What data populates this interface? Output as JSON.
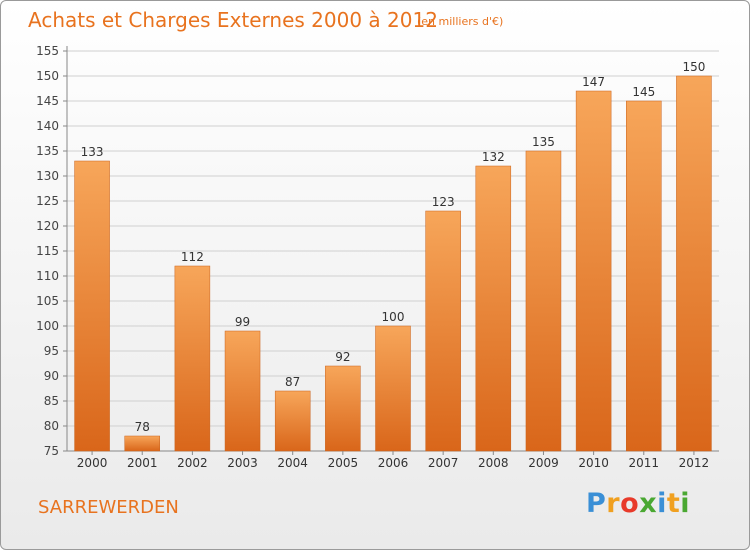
{
  "chart_data": {
    "type": "bar",
    "title": "Achats et Charges Externes 2000 à 2012",
    "subtitle": "(en milliers d'€)",
    "categories": [
      "2000",
      "2001",
      "2002",
      "2003",
      "2004",
      "2005",
      "2006",
      "2007",
      "2008",
      "2009",
      "2010",
      "2011",
      "2012"
    ],
    "values": [
      133,
      78,
      112,
      99,
      87,
      92,
      100,
      123,
      132,
      135,
      147,
      145,
      150
    ],
    "xlabel": "",
    "ylabel": "",
    "ylim": [
      75,
      155
    ],
    "yticks": [
      75,
      80,
      85,
      90,
      95,
      100,
      105,
      110,
      115,
      120,
      125,
      130,
      135,
      140,
      145,
      150,
      155
    ],
    "grid": true,
    "bar_color": "#f08a2c",
    "bar_color_light": "#f7a65a",
    "bar_color_dark": "#d9661a",
    "text_color": "#e8731f"
  },
  "footer": {
    "commune": "SARREWERDEN"
  },
  "brand": {
    "name": "Proxiti",
    "letters": [
      "P",
      "r",
      "o",
      "x",
      "i",
      "t",
      "i"
    ],
    "colors": [
      "#3a8fd6",
      "#f0a020",
      "#e83a2a",
      "#4aa832",
      "#3a8fd6",
      "#f0a020",
      "#4aa832"
    ]
  }
}
